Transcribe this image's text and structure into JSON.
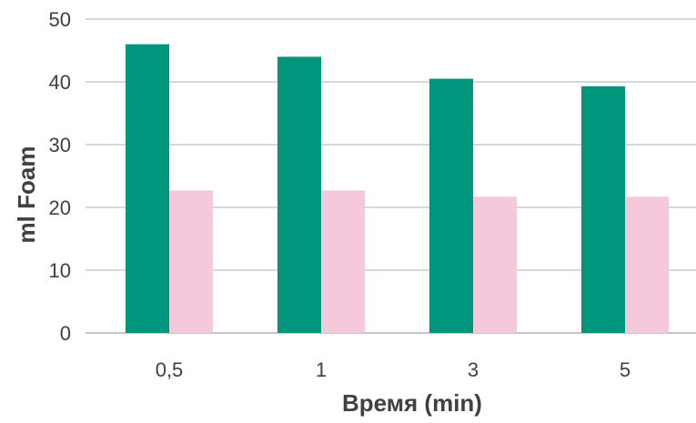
{
  "chart_data": {
    "type": "bar",
    "xlabel": "Время (min)",
    "ylabel": "ml Foam",
    "categories": [
      "0,5",
      "1",
      "3",
      "5"
    ],
    "series": [
      {
        "values": [
          46,
          44,
          40.5,
          39.3
        ],
        "color": "#00957d"
      },
      {
        "values": [
          22.7,
          22.7,
          21.7,
          21.7
        ],
        "color": "#f5c8dc"
      }
    ],
    "ylim": [
      0,
      50
    ],
    "yticks": [
      "0",
      "10",
      "20",
      "30",
      "40",
      "50"
    ],
    "grid": true,
    "legend": "none"
  }
}
